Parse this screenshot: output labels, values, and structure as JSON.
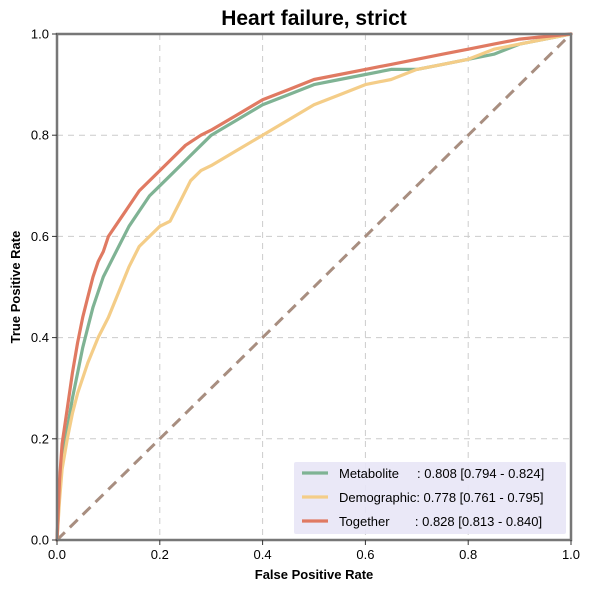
{
  "chart_data": {
    "type": "line",
    "title": "Heart failure, strict",
    "xlabel": "False Positive Rate",
    "ylabel": "True Positive Rate",
    "xlim": [
      0,
      1
    ],
    "ylim": [
      0,
      1
    ],
    "x_ticks": [
      "0.0",
      "0.2",
      "0.4",
      "0.6",
      "0.8",
      "1.0"
    ],
    "y_ticks": [
      "0.0",
      "0.2",
      "0.4",
      "0.6",
      "0.8",
      "1.0"
    ],
    "grid": true,
    "legend_position": "bottom-right",
    "series": [
      {
        "name": "Metabolite",
        "legend_label": "Metabolite     : 0.808 [0.794 - 0.824]",
        "color": "#7fb394",
        "x": [
          0,
          0.005,
          0.01,
          0.02,
          0.03,
          0.04,
          0.05,
          0.06,
          0.07,
          0.08,
          0.09,
          0.1,
          0.12,
          0.14,
          0.16,
          0.18,
          0.2,
          0.22,
          0.25,
          0.28,
          0.3,
          0.35,
          0.4,
          0.45,
          0.5,
          0.55,
          0.6,
          0.65,
          0.7,
          0.75,
          0.8,
          0.85,
          0.9,
          0.95,
          1.0
        ],
        "y": [
          0,
          0.1,
          0.16,
          0.22,
          0.28,
          0.33,
          0.38,
          0.42,
          0.46,
          0.49,
          0.52,
          0.54,
          0.58,
          0.62,
          0.65,
          0.68,
          0.7,
          0.72,
          0.75,
          0.78,
          0.8,
          0.83,
          0.86,
          0.88,
          0.9,
          0.91,
          0.92,
          0.93,
          0.93,
          0.94,
          0.95,
          0.96,
          0.98,
          0.99,
          1.0
        ]
      },
      {
        "name": "Demographic",
        "legend_label": "Demographic: 0.778 [0.761 - 0.795]",
        "color": "#f4cd88",
        "x": [
          0,
          0.005,
          0.01,
          0.02,
          0.03,
          0.04,
          0.05,
          0.06,
          0.08,
          0.1,
          0.12,
          0.14,
          0.16,
          0.18,
          0.2,
          0.22,
          0.24,
          0.26,
          0.28,
          0.3,
          0.35,
          0.4,
          0.45,
          0.5,
          0.55,
          0.6,
          0.65,
          0.7,
          0.75,
          0.8,
          0.85,
          0.9,
          0.95,
          1.0
        ],
        "y": [
          0,
          0.08,
          0.14,
          0.2,
          0.25,
          0.29,
          0.32,
          0.35,
          0.4,
          0.44,
          0.49,
          0.54,
          0.58,
          0.6,
          0.62,
          0.63,
          0.67,
          0.71,
          0.73,
          0.74,
          0.77,
          0.8,
          0.83,
          0.86,
          0.88,
          0.9,
          0.91,
          0.93,
          0.94,
          0.95,
          0.97,
          0.98,
          0.99,
          1.0
        ]
      },
      {
        "name": "Together",
        "legend_label": "Together       : 0.828 [0.813 - 0.840]",
        "color": "#e07a62",
        "x": [
          0,
          0.005,
          0.01,
          0.02,
          0.03,
          0.04,
          0.05,
          0.06,
          0.07,
          0.08,
          0.09,
          0.1,
          0.12,
          0.14,
          0.16,
          0.18,
          0.2,
          0.22,
          0.25,
          0.28,
          0.3,
          0.35,
          0.4,
          0.45,
          0.5,
          0.55,
          0.6,
          0.65,
          0.7,
          0.75,
          0.8,
          0.85,
          0.9,
          0.95,
          1.0
        ],
        "y": [
          0,
          0.12,
          0.19,
          0.26,
          0.33,
          0.39,
          0.44,
          0.48,
          0.52,
          0.55,
          0.57,
          0.6,
          0.63,
          0.66,
          0.69,
          0.71,
          0.73,
          0.75,
          0.78,
          0.8,
          0.81,
          0.84,
          0.87,
          0.89,
          0.91,
          0.92,
          0.93,
          0.94,
          0.95,
          0.96,
          0.97,
          0.98,
          0.99,
          0.995,
          1.0
        ]
      }
    ],
    "reference_line": {
      "x": [
        0,
        1
      ],
      "y": [
        0,
        1
      ],
      "color": "#a88e80"
    },
    "colors": {
      "legend_background": "#e8e6f6",
      "grid": "#cccccc",
      "frame": "#777777"
    }
  }
}
